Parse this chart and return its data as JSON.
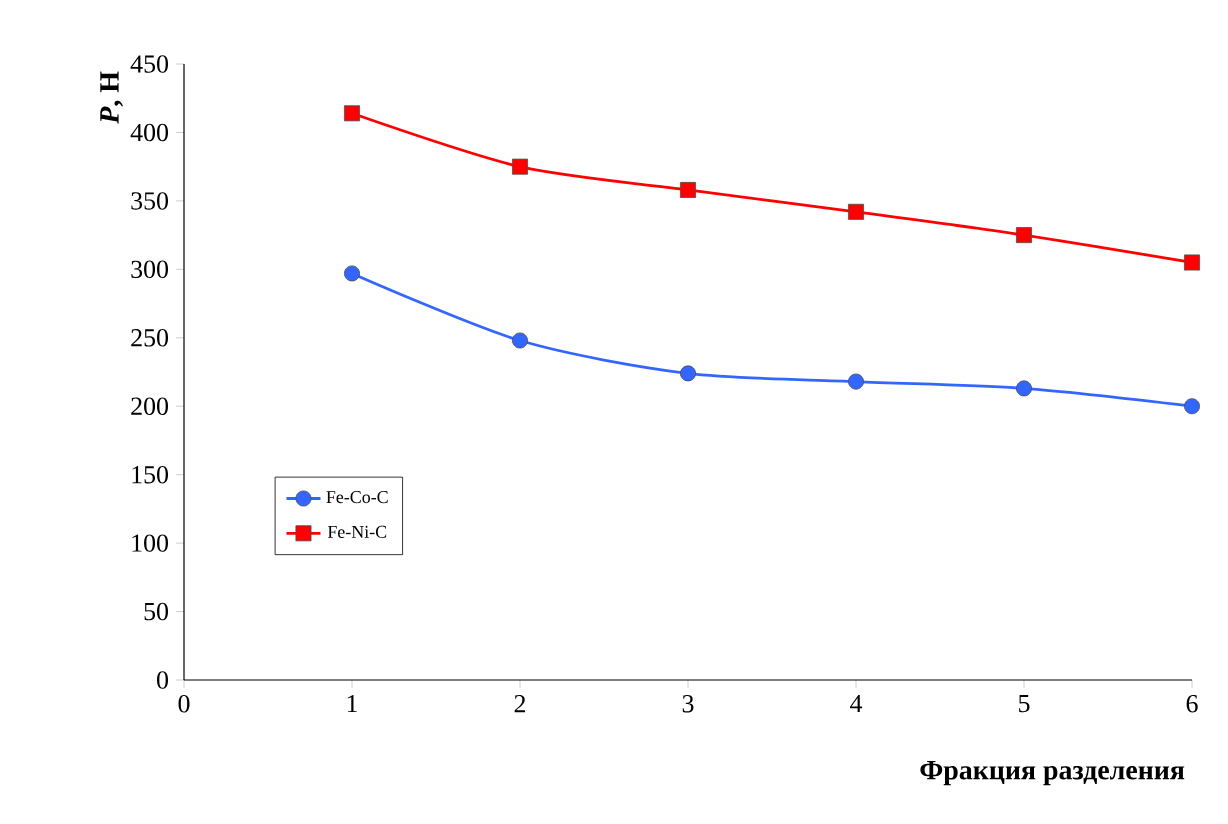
{
  "chart_data": {
    "type": "line",
    "xlabel": "Фракция разделения",
    "ylabel": "*P*, Н",
    "x": [
      1,
      2,
      3,
      4,
      5,
      6
    ],
    "series": [
      {
        "name": "Fe-Co-C",
        "color": "#3366ff",
        "marker": "circle",
        "values": [
          297,
          248,
          224,
          218,
          213,
          200
        ]
      },
      {
        "name": "Fe-Ni-C",
        "color": "#ff0000",
        "marker": "square",
        "values": [
          414,
          375,
          358,
          342,
          325,
          305
        ]
      }
    ],
    "xlim": [
      0,
      6
    ],
    "xticks": [
      0,
      1,
      2,
      3,
      4,
      5,
      6
    ],
    "ylim": [
      0,
      450
    ],
    "yticks": [
      0,
      50,
      100,
      150,
      200,
      250,
      300,
      350,
      400,
      450
    ],
    "grid": false,
    "legend": "left",
    "line_style": "solid"
  }
}
